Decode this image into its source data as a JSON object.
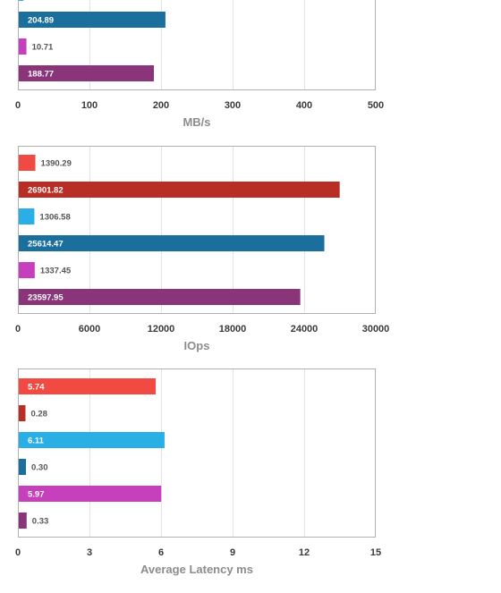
{
  "chart_data": [
    {
      "type": "bar",
      "orientation": "horizontal",
      "xlabel": "MB/s",
      "xlim": [
        0,
        500
      ],
      "xticks": [
        "0",
        "100",
        "200",
        "300",
        "400",
        "500"
      ],
      "bars": [
        {
          "value": 6.5,
          "label": "",
          "color": "#29aee6"
        },
        {
          "value": 204.89,
          "label": "204.89",
          "color": "#1a6f9c"
        },
        {
          "value": 10.71,
          "label": "10.71",
          "color": "#c63fbc"
        },
        {
          "value": 188.77,
          "label": "188.77",
          "color": "#8a3579"
        }
      ],
      "grid": true
    },
    {
      "type": "bar",
      "orientation": "horizontal",
      "xlabel": "IOps",
      "xlim": [
        0,
        30000
      ],
      "xticks": [
        "0",
        "6000",
        "12000",
        "18000",
        "24000",
        "30000"
      ],
      "bars": [
        {
          "value": 1390.29,
          "label": "1390.29",
          "color": "#f04a42"
        },
        {
          "value": 26901.82,
          "label": "26901.82",
          "color": "#b82d24"
        },
        {
          "value": 1306.58,
          "label": "1306.58",
          "color": "#29aee6"
        },
        {
          "value": 25614.47,
          "label": "25614.47",
          "color": "#1a6f9c"
        },
        {
          "value": 1337.45,
          "label": "1337.45",
          "color": "#c63fbc"
        },
        {
          "value": 23597.95,
          "label": "23597.95",
          "color": "#8a3579"
        }
      ],
      "grid": true
    },
    {
      "type": "bar",
      "orientation": "horizontal",
      "xlabel": "Average Latency ms",
      "xlim": [
        0,
        15
      ],
      "xticks": [
        "0",
        "3",
        "6",
        "9",
        "12",
        "15"
      ],
      "bars": [
        {
          "value": 5.74,
          "label": "5.74",
          "color": "#f04a42"
        },
        {
          "value": 0.28,
          "label": "0.28",
          "color": "#b82d24"
        },
        {
          "value": 6.11,
          "label": "6.11",
          "color": "#29aee6"
        },
        {
          "value": 0.3,
          "label": "0.30",
          "color": "#1a6f9c"
        },
        {
          "value": 5.97,
          "label": "5.97",
          "color": "#c63fbc"
        },
        {
          "value": 0.33,
          "label": "0.33",
          "color": "#8a3579"
        }
      ],
      "grid": true
    }
  ]
}
